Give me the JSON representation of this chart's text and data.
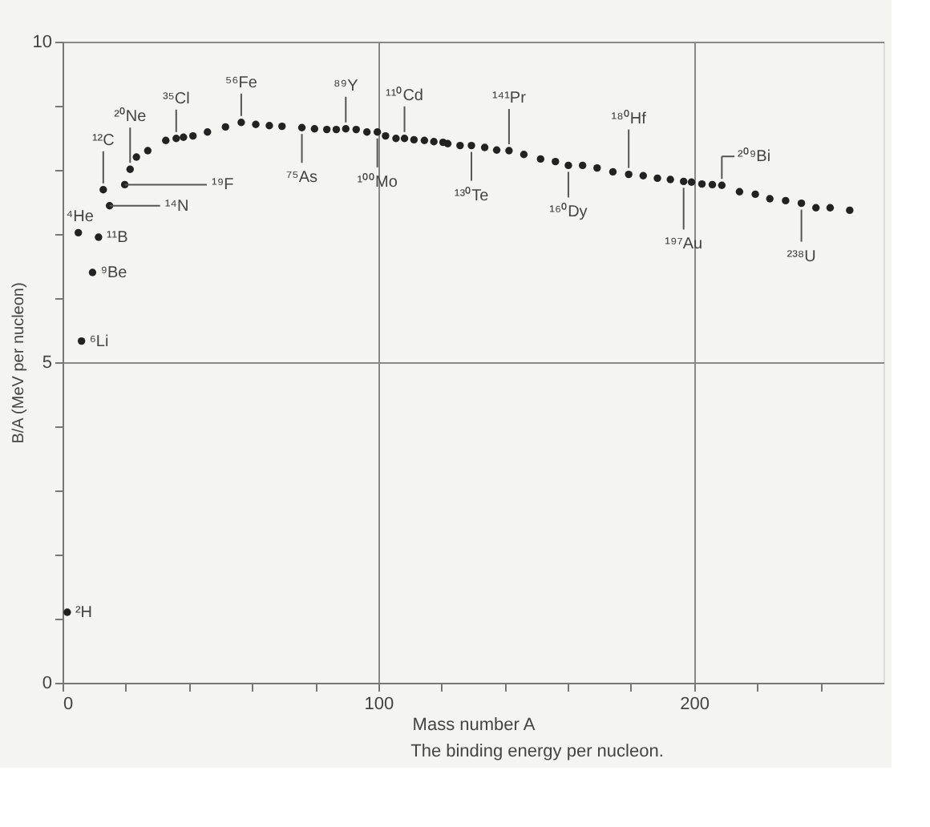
{
  "chart_data": {
    "type": "scatter",
    "xlabel": "Mass number A",
    "ylabel": "B/A (MeV per nucleon)",
    "x": [
      1.5,
      5,
      6,
      9.5,
      11.4,
      12.9,
      14.9,
      19.7,
      21.4,
      23.4,
      27.0,
      32.7,
      36.0,
      38.3,
      41.3,
      45.9,
      51.6,
      56.6,
      61.2,
      65.5,
      69.5,
      75.8,
      79.8,
      83.7,
      86.7,
      89.7,
      93.0,
      96.4,
      99.7,
      102.3,
      105.6,
      108.3,
      111.3,
      114.6,
      117.6,
      120.5,
      122.0,
      125.9,
      129.5,
      133.7,
      137.5,
      141.4,
      146.1,
      151.4,
      156.1,
      160.2,
      164.7,
      169.3,
      174.3,
      179.3,
      183.9,
      188.4,
      192.5,
      196.7,
      199.2,
      202.5,
      205.8,
      208.8,
      214.4,
      219.4,
      224.0,
      229.0,
      234.0,
      238.6,
      243.1,
      249.3
    ],
    "series": [
      {
        "color": "#222222",
        "values": [
          1.1,
          7.02,
          5.33,
          6.4,
          6.95,
          7.69,
          7.44,
          7.77,
          8.01,
          8.2,
          8.3,
          8.46,
          8.49,
          8.51,
          8.53,
          8.59,
          8.67,
          8.74,
          8.71,
          8.69,
          8.68,
          8.66,
          8.64,
          8.63,
          8.63,
          8.64,
          8.63,
          8.59,
          8.59,
          8.53,
          8.49,
          8.49,
          8.47,
          8.46,
          8.44,
          8.43,
          8.41,
          8.38,
          8.38,
          8.35,
          8.31,
          8.3,
          8.24,
          8.17,
          8.13,
          8.07,
          8.07,
          8.03,
          7.97,
          7.93,
          7.91,
          7.87,
          7.85,
          7.82,
          7.81,
          7.78,
          7.77,
          7.76,
          7.66,
          7.62,
          7.55,
          7.52,
          7.48,
          7.41,
          7.41,
          7.37
        ]
      }
    ],
    "marker": "circle",
    "grid": true,
    "xlim": [
      0,
      260
    ],
    "ylim": [
      0,
      10
    ],
    "xticks": [
      0,
      {
        "value": 20,
        "label": null
      },
      {
        "value": 40,
        "label": null
      },
      {
        "value": 60,
        "label": null
      },
      {
        "value": 80,
        "label": null
      },
      100,
      {
        "value": 120,
        "label": null
      },
      {
        "value": 140,
        "label": null
      },
      {
        "value": 160,
        "label": null
      },
      {
        "value": 180,
        "label": null
      },
      200,
      {
        "value": 220,
        "label": null
      },
      {
        "value": 240,
        "label": null
      }
    ],
    "yticks": [
      0,
      {
        "value": 1,
        "label": null
      },
      {
        "value": 2,
        "label": null
      },
      {
        "value": 3,
        "label": null
      },
      {
        "value": 4,
        "label": null
      },
      5,
      {
        "value": 6,
        "label": null
      },
      {
        "value": 7,
        "label": null
      },
      {
        "value": 8,
        "label": null
      },
      {
        "value": 9,
        "label": null
      },
      10
    ],
    "annotations": [
      {
        "text": "²H",
        "x": 1.5,
        "y": 1.1
      },
      {
        "text": "⁶Li",
        "x": 6,
        "y": 5.33
      },
      {
        "text": "⁹Be",
        "x": 9.5,
        "y": 6.4
      },
      {
        "text": "⁴He",
        "x": 5,
        "y": 7.02
      },
      {
        "text": "¹¹B",
        "x": 11.4,
        "y": 6.95
      },
      {
        "text": "¹⁴N",
        "x": 14.9,
        "y": 7.44
      },
      {
        "text": "¹²C",
        "x": 12.9,
        "y": 7.69
      },
      {
        "text": "¹⁹F",
        "x": 19.7,
        "y": 7.77
      },
      {
        "text": "²⁰Ne",
        "x": 21.4,
        "y": 8.01
      },
      {
        "text": "³⁵Cl",
        "x": 36.0,
        "y": 8.49
      },
      {
        "text": "⁵⁶Fe",
        "x": 56.6,
        "y": 8.74
      },
      {
        "text": "⁷⁵As",
        "x": 75.8,
        "y": 8.66
      },
      {
        "text": "⁸⁹Y",
        "x": 89.7,
        "y": 8.64
      },
      {
        "text": "¹⁰⁰Mo",
        "x": 99.7,
        "y": 8.59
      },
      {
        "text": "¹¹⁰Cd",
        "x": 108.3,
        "y": 8.49
      },
      {
        "text": "¹³⁰Te",
        "x": 129.5,
        "y": 8.38
      },
      {
        "text": "¹⁴¹Pr",
        "x": 141.4,
        "y": 8.3
      },
      {
        "text": "¹⁶⁰Dy",
        "x": 160.2,
        "y": 8.07
      },
      {
        "text": "¹⁸⁰Hf",
        "x": 179.3,
        "y": 7.93
      },
      {
        "text": "¹⁹⁷Au",
        "x": 196.7,
        "y": 7.82
      },
      {
        "text": "²⁰⁹Bi",
        "x": 208.8,
        "y": 7.76
      },
      {
        "text": "²³⁸U",
        "x": 234.0,
        "y": 7.48
      },
      "The binding energy per nucleon."
    ]
  }
}
